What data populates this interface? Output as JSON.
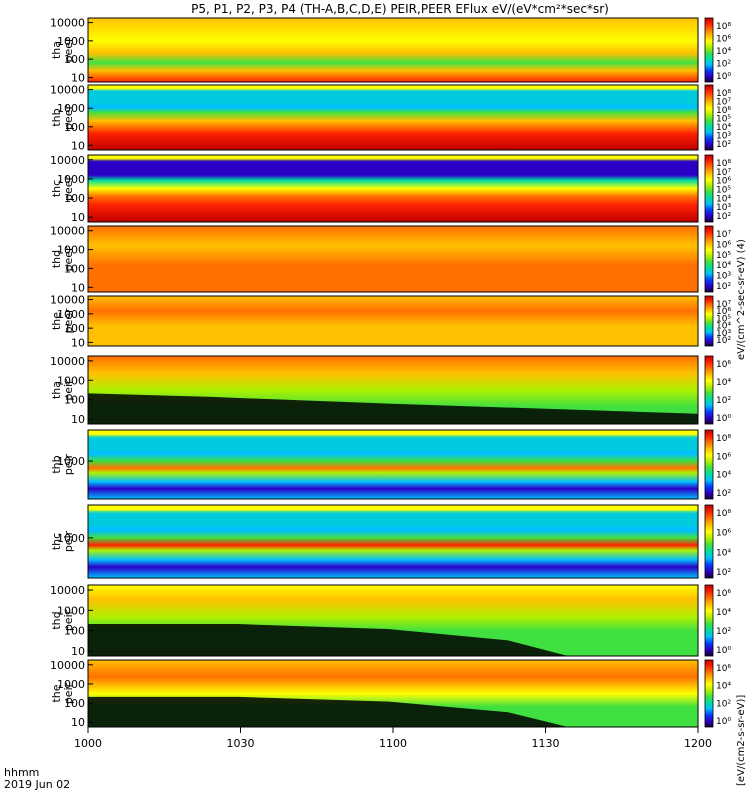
{
  "chart_data": {
    "type": "heatmap",
    "title": "P5, P1, P2, P3, P4 (TH-A,B,C,D,E) PEIR,PEER EFlux eV/(eV*cm²*sec*sr)",
    "x_tick_labels": [
      "1000",
      "1030",
      "1100",
      "1130",
      "1200"
    ],
    "x_corner_label_top": "hhmm",
    "x_corner_label_bottom": "2019 Jun 02",
    "colorbar_side_label": "[eV/(cm2-s-sr-eV)]",
    "colorbar_vertical_text": "eV/(cm^2-sec-sr-eV) (4)",
    "panels": [
      {
        "probe": "tha",
        "species": "peer",
        "y_ticks": [
          "10000",
          "1000",
          "100",
          "10"
        ],
        "cbar_ticks": [
          "10⁸",
          "10⁶",
          "10⁴",
          "10²",
          "10⁰"
        ]
      },
      {
        "probe": "thb",
        "species": "peer",
        "y_ticks": [
          "10000",
          "1000",
          "100",
          "10"
        ],
        "cbar_ticks": [
          "10⁸",
          "10⁷",
          "10⁶",
          "10⁵",
          "10⁴",
          "10³",
          "10²"
        ]
      },
      {
        "probe": "thc",
        "species": "peer",
        "y_ticks": [
          "10000",
          "1000",
          "100",
          "10"
        ],
        "cbar_ticks": [
          "10⁸",
          "10⁷",
          "10⁶",
          "10⁵",
          "10⁴",
          "10³",
          "10²"
        ]
      },
      {
        "probe": "thd",
        "species": "peer",
        "y_ticks": [
          "10000",
          "1000",
          "100",
          "10"
        ],
        "cbar_ticks": [
          "10⁷",
          "10⁶",
          "10⁵",
          "10⁴",
          "10³",
          "10²"
        ]
      },
      {
        "probe": "the",
        "species": "peer",
        "y_ticks": [
          "10000",
          "1000",
          "100",
          "10"
        ],
        "cbar_ticks": [
          "10⁷",
          "10⁶",
          "10⁵",
          "10⁴",
          "10³",
          "10²"
        ]
      },
      {
        "probe": "tha",
        "species": "peir",
        "y_ticks": [
          "10000",
          "1000",
          "100",
          "10"
        ],
        "cbar_ticks": [
          "10⁶",
          "10⁴",
          "10²",
          "10⁰"
        ]
      },
      {
        "probe": "thb",
        "species": "peir",
        "y_ticks": [
          "1000"
        ],
        "cbar_ticks": [
          "10⁸",
          "10⁶",
          "10⁴",
          "10²"
        ]
      },
      {
        "probe": "thc",
        "species": "peir",
        "y_ticks": [
          "1000"
        ],
        "cbar_ticks": [
          "10⁸",
          "10⁶",
          "10⁴",
          "10²"
        ]
      },
      {
        "probe": "thd",
        "species": "peir",
        "y_ticks": [
          "10000",
          "1000",
          "100",
          "10"
        ],
        "cbar_ticks": [
          "10⁶",
          "10⁴",
          "10²",
          "10⁰"
        ]
      },
      {
        "probe": "the",
        "species": "peir",
        "y_ticks": [
          "10000",
          "1000",
          "100",
          "10"
        ],
        "cbar_ticks": [
          "10⁶",
          "10⁴",
          "10²",
          "10⁰"
        ]
      }
    ]
  },
  "colors": {
    "rainbow": [
      "#1a0033",
      "#2a00c8",
      "#0040ff",
      "#00c0ff",
      "#00e0a0",
      "#40e040",
      "#b0f000",
      "#ffff00",
      "#ffc000",
      "#ff7000",
      "#ff2000",
      "#c00000"
    ],
    "black": "#000000",
    "white": "#ffffff"
  }
}
